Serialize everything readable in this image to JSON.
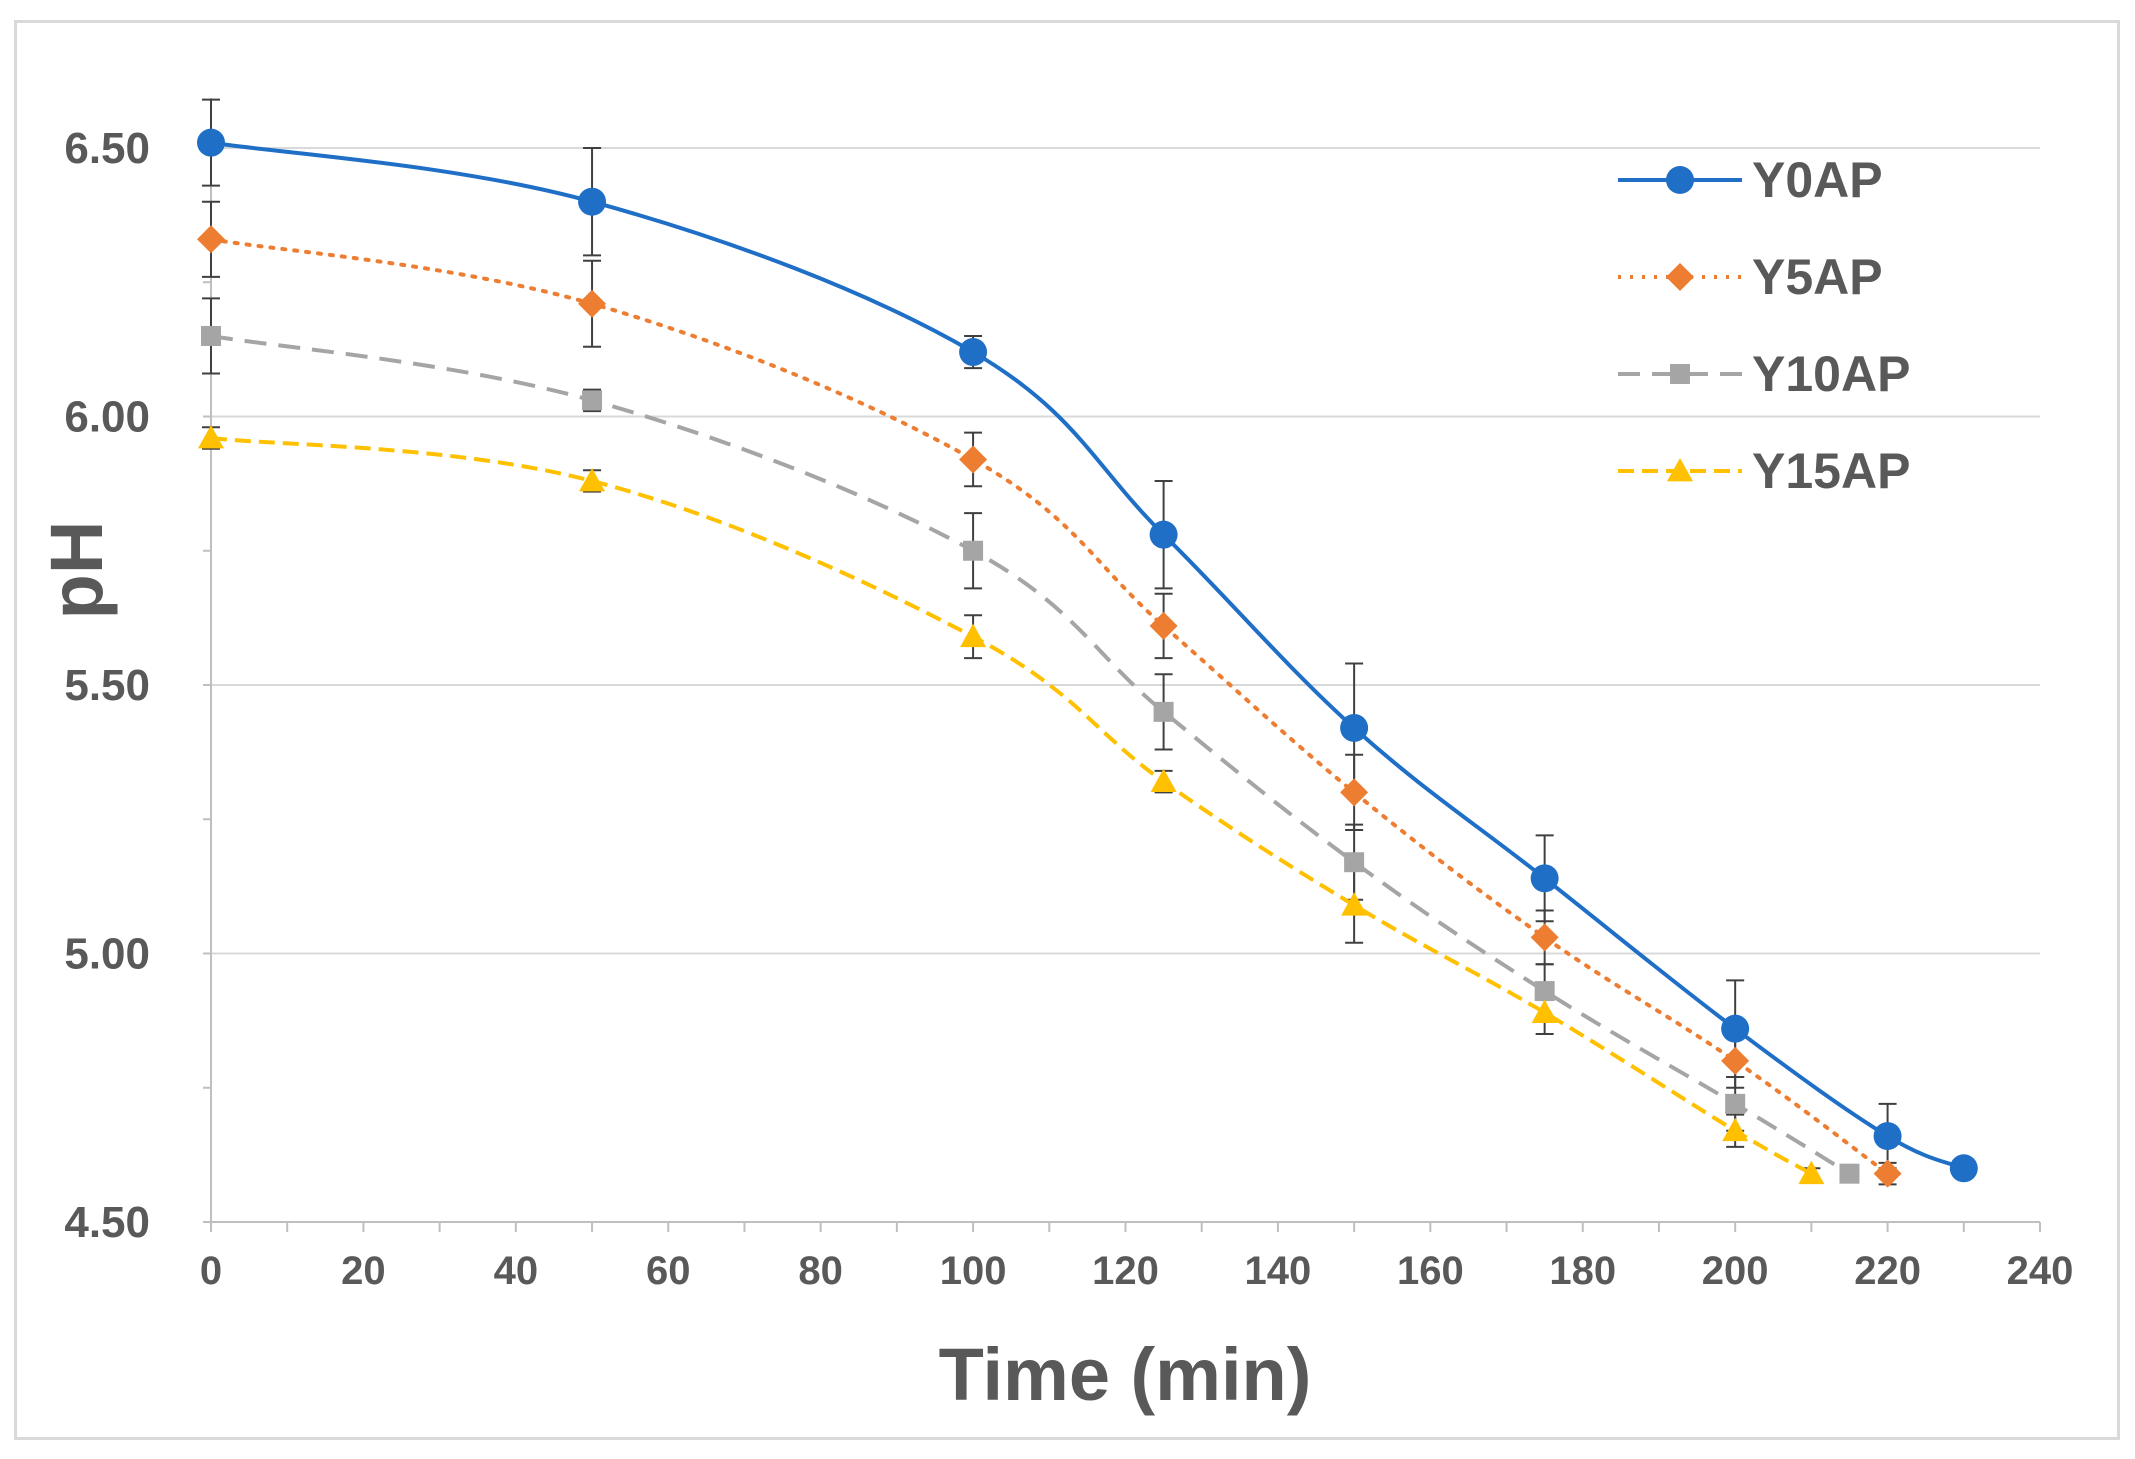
{
  "chart_data": {
    "type": "line",
    "title": "",
    "xlabel": "Time (min)",
    "ylabel": "pH",
    "xlim": [
      0,
      240
    ],
    "ylim": [
      4.5,
      6.5
    ],
    "x_ticks": [
      0,
      20,
      40,
      60,
      80,
      100,
      120,
      140,
      160,
      180,
      200,
      220,
      240
    ],
    "y_ticks": [
      "4.50",
      "5.00",
      "5.50",
      "6.00",
      "6.50"
    ],
    "grid": "horizontal",
    "legend_position": "top-right",
    "series": [
      {
        "name": "Y0AP",
        "color": "#1f6fc7",
        "dash": "solid",
        "marker": "circle",
        "x": [
          0,
          50,
          100,
          125,
          150,
          175,
          200,
          220,
          230
        ],
        "y": [
          6.51,
          6.4,
          6.12,
          5.78,
          5.42,
          5.14,
          4.86,
          4.66,
          4.6
        ],
        "err": [
          0.08,
          0.1,
          0.03,
          0.1,
          0.12,
          0.08,
          0.09,
          0.06,
          0
        ]
      },
      {
        "name": "Y5AP",
        "color": "#ed7d31",
        "dash": "dotted",
        "marker": "diamond",
        "x": [
          0,
          50,
          100,
          125,
          150,
          175,
          200,
          220
        ],
        "y": [
          6.33,
          6.21,
          5.92,
          5.61,
          5.3,
          5.03,
          4.8,
          4.59
        ],
        "err": [
          0.07,
          0.08,
          0.05,
          0.06,
          0.07,
          0.05,
          0.05,
          0.02
        ]
      },
      {
        "name": "Y10AP",
        "color": "#a5a5a5",
        "dash": "dashed",
        "marker": "square",
        "x": [
          0,
          50,
          100,
          125,
          150,
          175,
          200,
          215
        ],
        "y": [
          6.15,
          6.03,
          5.75,
          5.45,
          5.17,
          4.93,
          4.72,
          4.59
        ],
        "err": [
          0.07,
          0.02,
          0.07,
          0.07,
          0.07,
          0.05,
          0.05,
          0.01
        ]
      },
      {
        "name": "Y15AP",
        "color": "#ffc000",
        "dash": "dashed-short",
        "marker": "triangle",
        "x": [
          0,
          50,
          100,
          125,
          150,
          175,
          200,
          210
        ],
        "y": [
          5.96,
          5.88,
          5.59,
          5.32,
          5.09,
          4.89,
          4.67,
          4.59
        ],
        "err": [
          0.02,
          0.02,
          0.04,
          0.02,
          0.07,
          0.04,
          0.03,
          0.01
        ]
      }
    ]
  }
}
